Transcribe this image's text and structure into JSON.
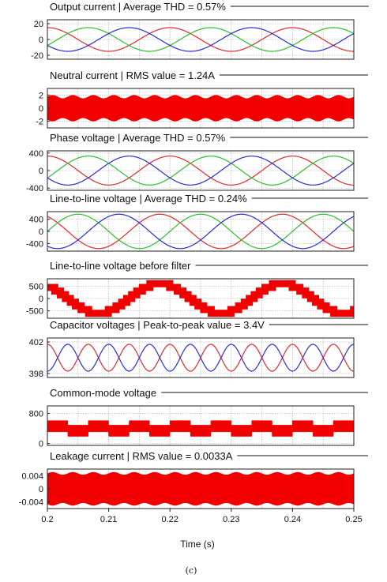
{
  "chart_data": {
    "type": "line",
    "x": {
      "label": "Time (s)",
      "range": [
        0.2,
        0.25
      ],
      "ticks": [
        "0.2",
        "0.21",
        "0.22",
        "0.23",
        "0.24",
        "0.25"
      ]
    },
    "caption": "(c)",
    "panels": [
      {
        "title": "Output current | Average THD = 0.57%",
        "ylim": [
          -25,
          25
        ],
        "yticks": [
          {
            "value": 20,
            "label": "20"
          },
          {
            "value": 0,
            "label": "0"
          },
          {
            "value": -20,
            "label": "-20"
          }
        ],
        "series": [
          {
            "kind": "sine",
            "amplitude": 15,
            "frequency_hz": 50,
            "phase_deg": 90,
            "color": "#e8262a"
          },
          {
            "kind": "sine",
            "amplitude": 15,
            "frequency_hz": 50,
            "phase_deg": -30,
            "color": "#27c227"
          },
          {
            "kind": "sine",
            "amplitude": 15,
            "frequency_hz": 50,
            "phase_deg": 210,
            "color": "#2a2ae0"
          }
        ]
      },
      {
        "title": "Neutral current | RMS value = 1.24A",
        "ylim": [
          -3,
          3
        ],
        "yticks": [
          {
            "value": 2,
            "label": "2"
          },
          {
            "value": 0,
            "label": "0"
          },
          {
            "value": -2,
            "label": "-2"
          }
        ],
        "series": [
          {
            "kind": "band",
            "amplitude": 1.75,
            "ripple": 0.25,
            "ripple_frequency_hz": 300,
            "color": "#f20000"
          }
        ]
      },
      {
        "title": "Phase voltage | Average THD = 0.57%",
        "ylim": [
          -450,
          450
        ],
        "yticks": [
          {
            "value": 400,
            "label": "400"
          },
          {
            "value": 0,
            "label": "0"
          },
          {
            "value": -400,
            "label": "-400"
          }
        ],
        "series": [
          {
            "kind": "sine",
            "amplitude": 330,
            "frequency_hz": 50,
            "phase_deg": 90,
            "color": "#e8262a"
          },
          {
            "kind": "sine",
            "amplitude": 330,
            "frequency_hz": 50,
            "phase_deg": -30,
            "color": "#27c227"
          },
          {
            "kind": "sine",
            "amplitude": 330,
            "frequency_hz": 50,
            "phase_deg": 210,
            "color": "#2a2ae0"
          }
        ]
      },
      {
        "title": "Line-to-line voltage | Average THD = 0.24%",
        "ylim": [
          -650,
          650
        ],
        "yticks": [
          {
            "value": 400,
            "label": "400"
          },
          {
            "value": 0,
            "label": "0"
          },
          {
            "value": -400,
            "label": "-400"
          }
        ],
        "series": [
          {
            "kind": "sine",
            "amplitude": 565,
            "frequency_hz": 50,
            "phase_deg": 120,
            "color": "#e8262a"
          },
          {
            "kind": "sine",
            "amplitude": 565,
            "frequency_hz": 50,
            "phase_deg": 0,
            "color": "#27c227"
          },
          {
            "kind": "sine",
            "amplitude": 565,
            "frequency_hz": 50,
            "phase_deg": 240,
            "color": "#2a2ae0"
          }
        ]
      },
      {
        "title": "Line-to-line voltage before filter",
        "ylim": [
          -800,
          800
        ],
        "yticks": [
          {
            "value": 500,
            "label": "500"
          },
          {
            "value": 0,
            "label": "0"
          },
          {
            "value": -500,
            "label": "-500"
          }
        ],
        "series": [
          {
            "kind": "staircase",
            "amplitude": 600,
            "levels": 4,
            "frequency_hz": 50,
            "phase_deg": 120,
            "color": "#f20000"
          }
        ]
      },
      {
        "title": "Capacitor voltages | Peak-to-peak value = 3.4V",
        "ylim": [
          397.5,
          402.5
        ],
        "yticks": [
          {
            "value": 402,
            "label": "402"
          },
          {
            "value": 398,
            "label": "398"
          }
        ],
        "series": [
          {
            "kind": "sine",
            "offset": 400,
            "amplitude": 1.7,
            "frequency_hz": 150,
            "phase_deg": 90,
            "color": "#e8262a"
          },
          {
            "kind": "sine",
            "offset": 400,
            "amplitude": 1.7,
            "frequency_hz": 150,
            "phase_deg": 270,
            "color": "#2a2ae0"
          }
        ]
      },
      {
        "title": "Common-mode voltage",
        "ylim": [
          -50,
          1000
        ],
        "yticks": [
          {
            "value": 800,
            "label": "800"
          },
          {
            "value": 0,
            "label": "0"
          }
        ],
        "series": [
          {
            "kind": "band_steps",
            "center": 400,
            "step_amplitude": 100,
            "half_width": 150,
            "steps_per_period": 6,
            "frequency_hz": 50,
            "color": "#f20000"
          }
        ]
      },
      {
        "title": "Leakage current | RMS value = 0.0033A",
        "ylim": [
          -0.006,
          0.006
        ],
        "yticks": [
          {
            "value": 0.004,
            "label": "0.004"
          },
          {
            "value": 0,
            "label": "0"
          },
          {
            "value": -0.004,
            "label": "-0.004"
          }
        ],
        "series": [
          {
            "kind": "band",
            "amplitude": 0.0047,
            "ripple": 0.0004,
            "ripple_frequency_hz": 300,
            "color": "#f20000"
          }
        ]
      }
    ]
  }
}
